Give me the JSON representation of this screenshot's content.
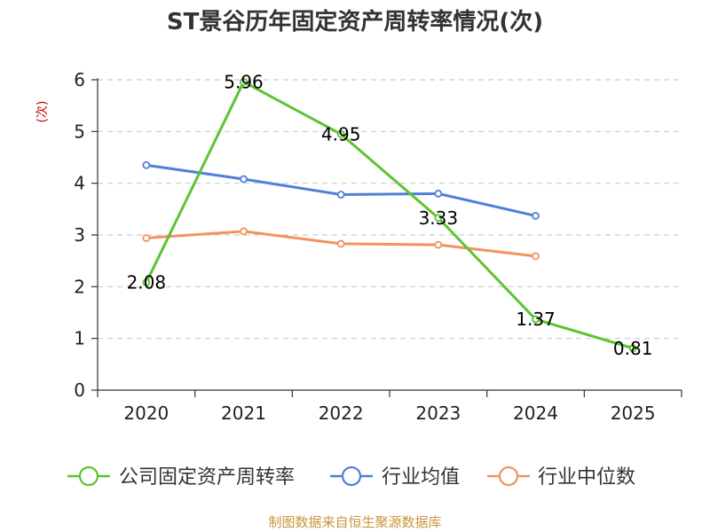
{
  "chart_data": {
    "type": "line",
    "title": "ST景谷历年固定资产周转率情况(次)",
    "ylabel": "(次)",
    "xlabel": "",
    "ylim": [
      0,
      6
    ],
    "yticks": [
      0,
      1,
      2,
      3,
      4,
      5,
      6
    ],
    "categories": [
      "2020",
      "2021",
      "2022",
      "2023",
      "2024",
      "2025"
    ],
    "grid": true,
    "legend_position": "bottom",
    "series": [
      {
        "name": "公司固定资产周转率",
        "color": "#5cc431",
        "values": [
          2.08,
          5.96,
          4.95,
          3.33,
          1.37,
          0.81
        ],
        "labels": [
          "2.08",
          "5.96",
          "4.95",
          "3.33",
          "1.37",
          "0.81"
        ]
      },
      {
        "name": "行业均值",
        "color": "#4f80d9",
        "values": [
          4.35,
          4.08,
          3.78,
          3.8,
          3.37,
          null
        ]
      },
      {
        "name": "行业中位数",
        "color": "#f4925f",
        "values": [
          2.94,
          3.07,
          2.83,
          2.81,
          2.59,
          null
        ]
      }
    ],
    "source": "制图数据来自恒生聚源数据库"
  }
}
